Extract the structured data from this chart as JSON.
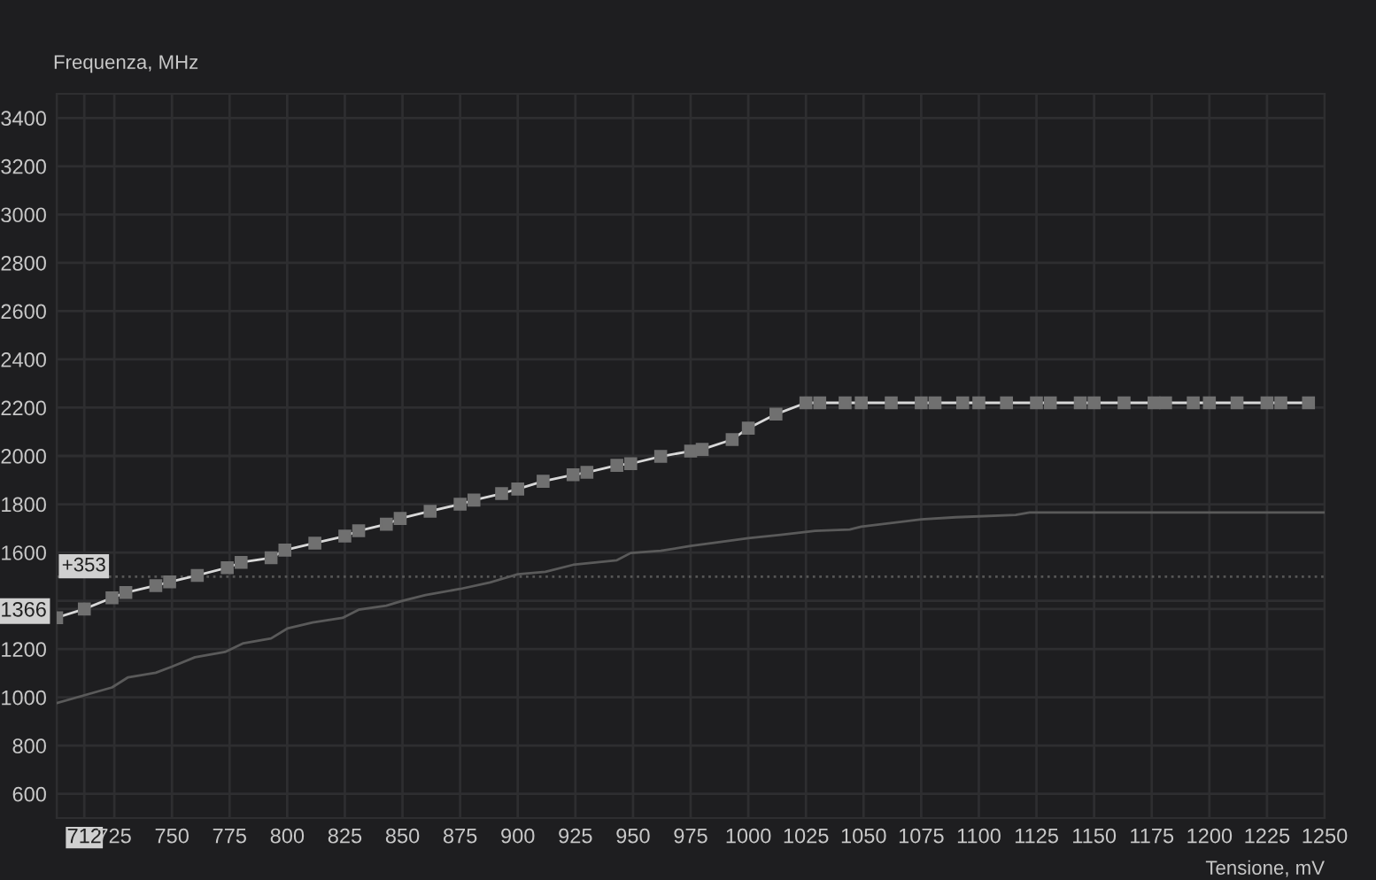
{
  "chart_data": {
    "type": "line",
    "ylabel": "Frequenza, MHz",
    "xlabel": "Tensione, mV",
    "xlim": [
      700,
      1250
    ],
    "ylim": [
      500,
      3500
    ],
    "xticks": [
      {
        "value": 700,
        "label": null
      },
      {
        "value": 712,
        "label": "712"
      },
      725,
      750,
      775,
      800,
      825,
      850,
      875,
      900,
      925,
      950,
      975,
      1000,
      1025,
      1050,
      1075,
      1100,
      1125,
      1150,
      1175,
      1200,
      1225,
      1250
    ],
    "yticks": [
      600,
      800,
      1000,
      1200,
      {
        "value": 1366,
        "label": "1366"
      },
      {
        "value": 1400,
        "label": null
      },
      1600,
      1800,
      2000,
      2200,
      2400,
      2600,
      2800,
      3000,
      3200,
      3400
    ],
    "grid": true,
    "legend": false,
    "series": [
      {
        "color": "#d8d8d8",
        "marker": "square",
        "x": [
          700,
          712,
          724,
          730,
          743,
          749,
          761,
          774,
          780,
          793,
          799,
          812,
          825,
          831,
          843,
          849,
          862,
          875,
          881,
          893,
          900,
          911,
          924,
          930,
          943,
          949,
          962,
          975,
          980,
          993,
          1000,
          1012,
          1025,
          1031,
          1042,
          1049,
          1062,
          1075,
          1081,
          1093,
          1100,
          1112,
          1125,
          1131,
          1144,
          1150,
          1163,
          1176,
          1181,
          1193,
          1200,
          1212,
          1225,
          1231,
          1243
        ],
        "values": [
          1330,
          1366,
          1412,
          1434,
          1463,
          1478,
          1505,
          1537,
          1559,
          1578,
          1610,
          1639,
          1668,
          1690,
          1717,
          1741,
          1771,
          1800,
          1817,
          1844,
          1863,
          1895,
          1922,
          1932,
          1961,
          1968,
          1998,
          2020,
          2027,
          2068,
          2115,
          2173,
          2220,
          2220,
          2220,
          2220,
          2220,
          2220,
          2220,
          2220,
          2220,
          2220,
          2220,
          2220,
          2220,
          2220,
          2220,
          2220,
          2220,
          2220,
          2220,
          2220,
          2220,
          2220,
          2220
        ]
      },
      {
        "color": "#5a5a5a",
        "marker": "none",
        "x": [
          700,
          724,
          731,
          743,
          750,
          760,
          773,
          781,
          793,
          800,
          811,
          824,
          831,
          843,
          850,
          860,
          875,
          888,
          894,
          900,
          912,
          924,
          943,
          949,
          962,
          975,
          988,
          1000,
          1014,
          1029,
          1044,
          1049,
          1075,
          1090,
          1116,
          1122,
          1250
        ],
        "values": [
          976,
          1041,
          1083,
          1102,
          1127,
          1166,
          1188,
          1224,
          1244,
          1285,
          1310,
          1329,
          1363,
          1380,
          1400,
          1424,
          1449,
          1476,
          1493,
          1510,
          1520,
          1549,
          1568,
          1598,
          1607,
          1627,
          1644,
          1659,
          1673,
          1690,
          1695,
          1707,
          1737,
          1746,
          1756,
          1766,
          1766
        ]
      }
    ],
    "ref_lines": [
      {
        "axis": "y",
        "value": 1500,
        "color": "#555555",
        "line_style": "dotted"
      }
    ],
    "annotations": [
      "+353"
    ]
  }
}
